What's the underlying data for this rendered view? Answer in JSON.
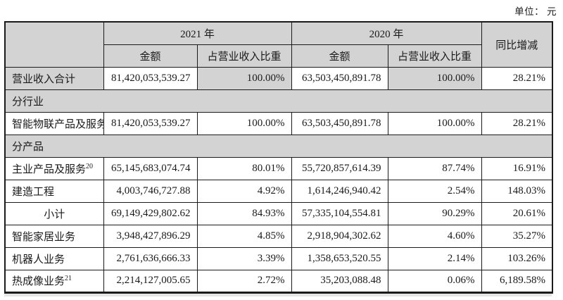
{
  "unit_label": "单位： 元",
  "colors": {
    "page_bg": "#ffffff",
    "header_bg": "#d3d3d3",
    "border": "#1a1a1a",
    "text": "#1a1a1a"
  },
  "table": {
    "header": {
      "year_2021": "2021 年",
      "year_2020": "2020 年",
      "yoy": "同比增减",
      "amount_2021": "金额",
      "share_2021": "占营业收入比重",
      "amount_2020": "金额",
      "share_2020": "占营业收入比重"
    },
    "rows": [
      {
        "type": "data",
        "label": "营业收入合计",
        "amount_2021": "81,420,053,539.27",
        "share_2021": "100.00%",
        "amount_2020": "63,503,450,891.78",
        "share_2020": "100.00%",
        "yoy": "28.21%"
      },
      {
        "type": "section",
        "label": "分行业"
      },
      {
        "type": "data",
        "label": "智能物联产品及服务",
        "amount_2021": "81,420,053,539.27",
        "share_2021": "100.00%",
        "amount_2020": "63,503,450,891.78",
        "share_2020": "100.00%",
        "yoy": "28.21%"
      },
      {
        "type": "section",
        "label": "分产品"
      },
      {
        "type": "data",
        "label": "主业产品及服务",
        "label_sup": "20",
        "amount_2021": "65,145,683,074.74",
        "share_2021": "80.01%",
        "amount_2020": "55,720,857,614.39",
        "share_2020": "87.74%",
        "yoy": "16.91%"
      },
      {
        "type": "data",
        "label": "建造工程",
        "amount_2021": "4,003,746,727.88",
        "share_2021": "4.92%",
        "amount_2020": "1,614,246,940.42",
        "share_2020": "2.54%",
        "yoy": "148.03%"
      },
      {
        "type": "data",
        "label": "小计",
        "amount_2021": "69,149,429,802.62",
        "share_2021": "84.93%",
        "amount_2020": "57,335,104,554.81",
        "share_2020": "90.29%",
        "yoy": "20.61%"
      },
      {
        "type": "data",
        "label": "智能家居业务",
        "amount_2021": "3,948,427,896.29",
        "share_2021": "4.85%",
        "amount_2020": "2,918,904,302.62",
        "share_2020": "4.60%",
        "yoy": "35.27%"
      },
      {
        "type": "data",
        "label": "机器人业务",
        "amount_2021": "2,761,636,666.33",
        "share_2021": "3.39%",
        "amount_2020": "1,358,653,520.55",
        "share_2020": "2.14%",
        "yoy": "103.26%"
      },
      {
        "type": "data",
        "label": "热成像业务",
        "label_sup": "21",
        "amount_2021": "2,214,127,005.65",
        "share_2021": "2.72%",
        "amount_2020": "35,203,088.48",
        "share_2020": "0.06%",
        "yoy": "6,189.58%"
      }
    ]
  }
}
